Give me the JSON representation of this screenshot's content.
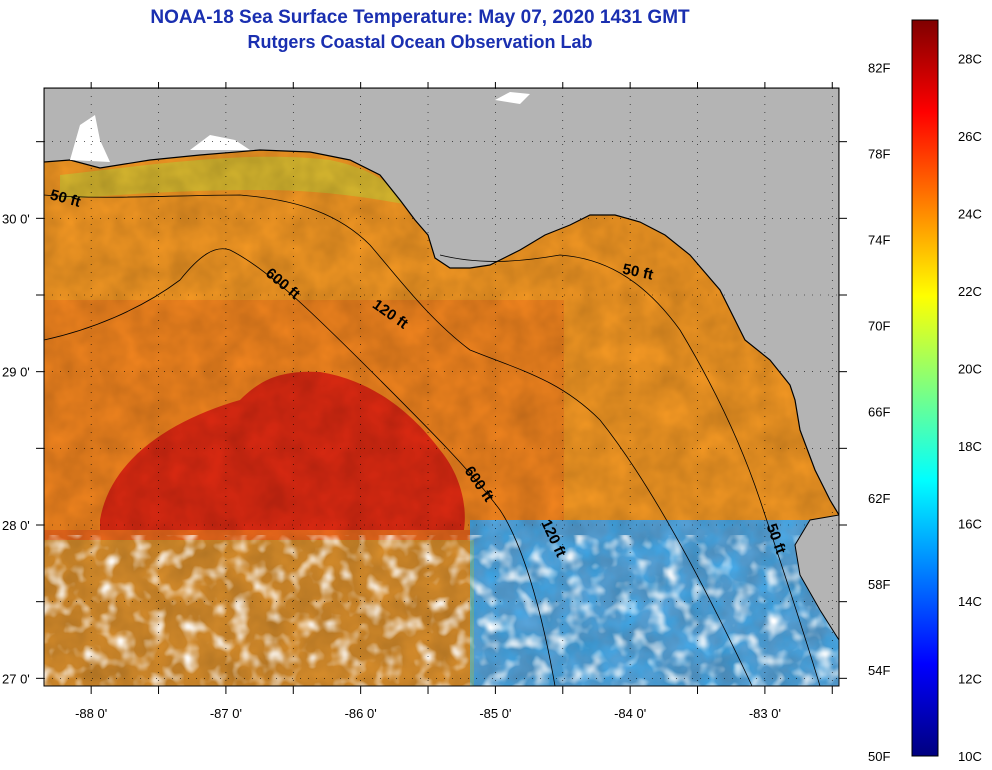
{
  "header": {
    "title": "NOAA-18 Sea Surface Temperature:  May 07, 2020 1431 GMT",
    "subtitle": "Rutgers Coastal Ocean Observation Lab"
  },
  "map": {
    "lon_range": [
      -88.35,
      -82.45
    ],
    "lat_range": [
      26.95,
      30.85
    ],
    "lon_ticks": [
      {
        "value": -88,
        "label": "-88 0'"
      },
      {
        "value": -87,
        "label": "-87 0'"
      },
      {
        "value": -86,
        "label": "-86 0'"
      },
      {
        "value": -85,
        "label": "-85 0'"
      },
      {
        "value": -84,
        "label": "-84 0'"
      },
      {
        "value": -83,
        "label": "-83 0'"
      }
    ],
    "lat_ticks": [
      {
        "value": 27,
        "label": "27 0'"
      },
      {
        "value": 28,
        "label": "28 0'"
      },
      {
        "value": 29,
        "label": "29 0'"
      },
      {
        "value": 30,
        "label": "30 0'"
      }
    ],
    "contour_labels": [
      {
        "text": "50 ft",
        "lon": -88.2,
        "lat": 30.1
      },
      {
        "text": "600 ft",
        "lon": -86.6,
        "lat": 29.55
      },
      {
        "text": "120 ft",
        "lon": -85.8,
        "lat": 29.35
      },
      {
        "text": "50 ft",
        "lon": -83.95,
        "lat": 29.62
      },
      {
        "text": "600 ft",
        "lon": -85.15,
        "lat": 28.25
      },
      {
        "text": "120 ft",
        "lon": -84.6,
        "lat": 27.9
      },
      {
        "text": "50 ft",
        "lon": -82.95,
        "lat": 27.9
      }
    ],
    "colors": {
      "land": "#b4b4b4",
      "cloud": "#ffffff",
      "coast": "#000000"
    }
  },
  "colorbar": {
    "min_c": 10,
    "max_c": 29,
    "celsius_labels": [
      "28C",
      "26C",
      "24C",
      "22C",
      "20C",
      "18C",
      "16C",
      "14C",
      "12C",
      "10C"
    ],
    "fahrenheit_labels": [
      "82F",
      "78F",
      "74F",
      "70F",
      "66F",
      "62F",
      "58F",
      "54F",
      "50F"
    ],
    "stops": [
      "#00007f",
      "#0000ff",
      "#007fff",
      "#00ffff",
      "#7fff7f",
      "#ffff00",
      "#ff7f00",
      "#ff0000",
      "#7f0000"
    ]
  }
}
